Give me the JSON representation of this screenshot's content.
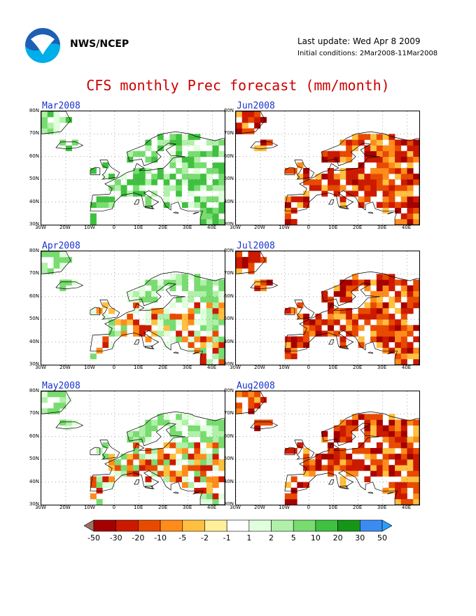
{
  "header": {
    "org": "NWS/NCEP",
    "last_update": "Last update: Wed Apr 8 2009",
    "initial_conditions": "Initial conditions: 2Mar2008-11Mar2008",
    "title": "CFS monthly Prec forecast (mm/month)"
  },
  "axes": {
    "lat_labels": [
      "80N",
      "70N",
      "60N",
      "50N",
      "40N",
      "30N"
    ],
    "lon_labels": [
      "30W",
      "20W",
      "10W",
      "0",
      "10E",
      "20E",
      "30E",
      "40E"
    ]
  },
  "panels": [
    {
      "label": "Mar2008",
      "regime": "wet"
    },
    {
      "label": "Jun2008",
      "regime": "dry"
    },
    {
      "label": "Apr2008",
      "regime": "mixed"
    },
    {
      "label": "Jul2008",
      "regime": "dry"
    },
    {
      "label": "May2008",
      "regime": "mixed"
    },
    {
      "label": "Aug2008",
      "regime": "dry"
    }
  ],
  "legend": {
    "labels": [
      "-50",
      "-30",
      "-20",
      "-10",
      "-5",
      "-2",
      "-1",
      "1",
      "2",
      "5",
      "10",
      "20",
      "30",
      "50"
    ],
    "colors": [
      "#9b7060",
      "#a50000",
      "#cc1a00",
      "#e84a00",
      "#ff8c1a",
      "#ffbf40",
      "#ffef99",
      "#ffffff",
      "#e0ffdc",
      "#b0f0a8",
      "#78dc70",
      "#40c040",
      "#169616",
      "#3c8cf0",
      "#28a0ff"
    ]
  }
}
